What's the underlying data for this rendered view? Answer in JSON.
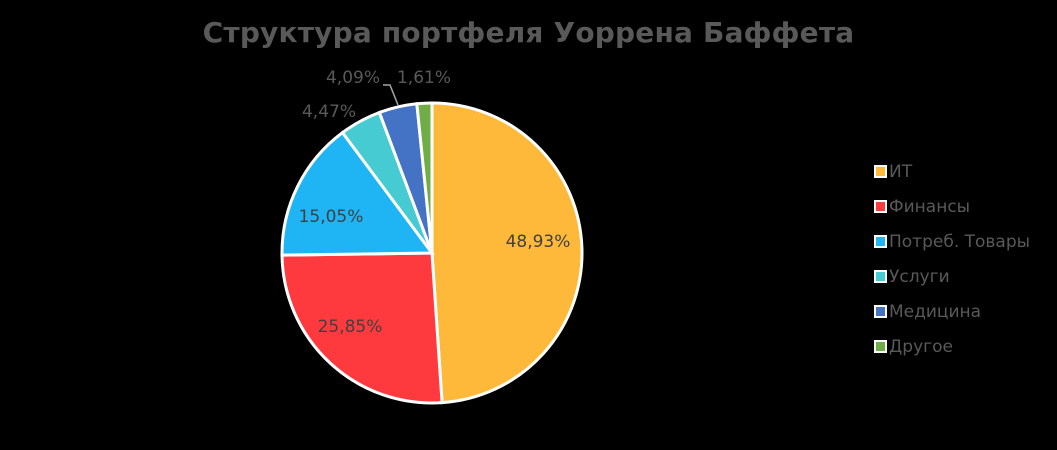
{
  "chart_data": {
    "type": "pie",
    "title": "Структура портфеля Уоррена Баффета",
    "legend_position": "right",
    "slices": [
      {
        "label": "ИТ",
        "value": 48.93,
        "display": "48,93%",
        "color": "#FFB93A"
      },
      {
        "label": "Финансы",
        "value": 25.85,
        "display": "25,85%",
        "color": "#FF3A3F"
      },
      {
        "label": "Потреб. Товары",
        "value": 15.05,
        "display": "15,05%",
        "color": "#1FB5F5"
      },
      {
        "label": "Услуги",
        "value": 4.47,
        "display": "4,47%",
        "color": "#47CBD3"
      },
      {
        "label": "Медицина",
        "value": 4.09,
        "display": "4,09%",
        "color": "#4472C4"
      },
      {
        "label": "Другое",
        "value": 1.61,
        "display": "1,61%",
        "color": "#70AD47"
      }
    ]
  },
  "legend": {
    "items": [
      {
        "label": "ИТ",
        "color": "#FFB93A"
      },
      {
        "label": "Финансы",
        "color": "#FF3A3F"
      },
      {
        "label": "Потреб. Товары",
        "color": "#1FB5F5"
      },
      {
        "label": "Услуги",
        "color": "#47CBD3"
      },
      {
        "label": "Медицина",
        "color": "#4472C4"
      },
      {
        "label": "Другое",
        "color": "#70AD47"
      }
    ]
  }
}
